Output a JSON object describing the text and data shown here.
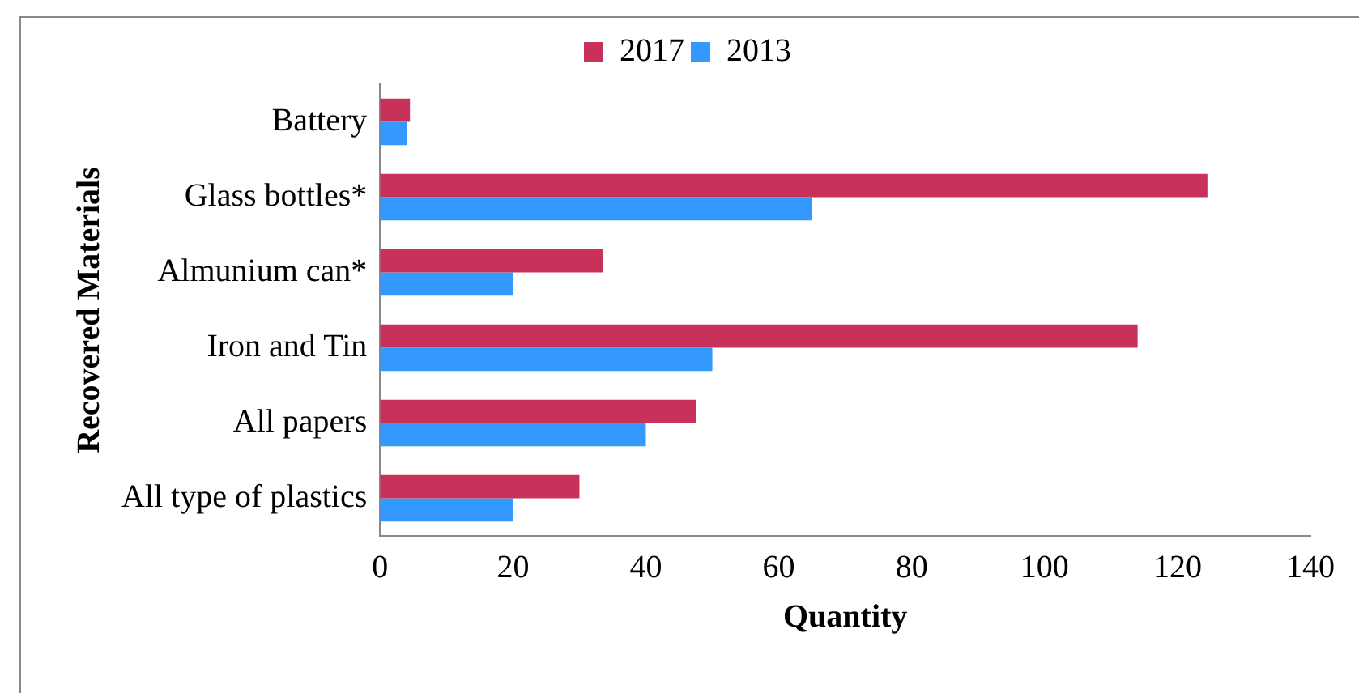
{
  "chart_data": {
    "type": "bar",
    "orientation": "horizontal",
    "xlabel": "Quantity",
    "ylabel": "Recovered Materials",
    "categories": [
      "Battery",
      "Glass bottles*",
      "Almunium can*",
      "Iron and Tin",
      "All papers",
      "All type of plastics"
    ],
    "series": [
      {
        "name": "2017",
        "color": "#c8325a",
        "values": [
          4.5,
          124.5,
          33.5,
          114,
          47.5,
          30
        ]
      },
      {
        "name": "2013",
        "color": "#3399ff",
        "values": [
          4,
          65,
          20,
          50,
          40,
          20
        ]
      }
    ],
    "xlim": [
      0,
      140
    ],
    "xticks": [
      0,
      20,
      40,
      60,
      80,
      100,
      120,
      140
    ],
    "grid": false,
    "legend": "top"
  }
}
